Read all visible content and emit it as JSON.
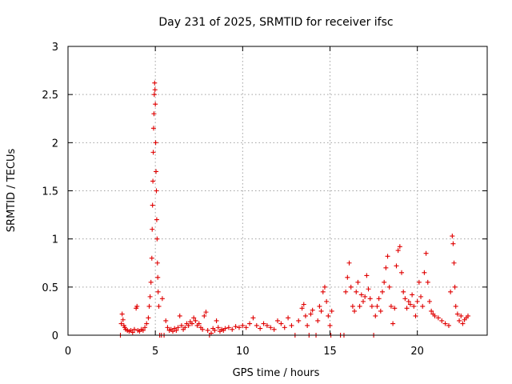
{
  "chart_data": {
    "type": "scatter",
    "title": "Day 231 of 2025, SRMTID for receiver ifsc",
    "xlabel": "GPS time / hours",
    "ylabel": "SRMTID / TECUs",
    "xlim": [
      0,
      24
    ],
    "ylim": [
      0,
      3
    ],
    "xticks": [
      0,
      5,
      10,
      15,
      20
    ],
    "yticks": [
      0,
      0.5,
      1,
      1.5,
      2,
      2.5,
      3
    ],
    "ytick_labels": [
      "0",
      "0.5",
      "1",
      "1.5",
      "2",
      "2.5",
      "3"
    ],
    "grid": true,
    "marker": "+",
    "color": "#e00000",
    "series": [
      {
        "name": "SRMTID",
        "points": [
          [
            3.0,
            0.0
          ],
          [
            3.05,
            0.12
          ],
          [
            3.1,
            0.22
          ],
          [
            3.15,
            0.16
          ],
          [
            3.2,
            0.1
          ],
          [
            3.25,
            0.08
          ],
          [
            3.3,
            0.06
          ],
          [
            3.4,
            0.05
          ],
          [
            3.5,
            0.04
          ],
          [
            3.6,
            0.05
          ],
          [
            3.7,
            0.03
          ],
          [
            3.8,
            0.06
          ],
          [
            3.9,
            0.28
          ],
          [
            3.95,
            0.3
          ],
          [
            4.0,
            0.05
          ],
          [
            4.1,
            0.04
          ],
          [
            4.2,
            0.06
          ],
          [
            4.3,
            0.05
          ],
          [
            4.4,
            0.08
          ],
          [
            4.5,
            0.12
          ],
          [
            4.6,
            0.18
          ],
          [
            4.65,
            0.3
          ],
          [
            4.7,
            0.4
          ],
          [
            4.75,
            0.55
          ],
          [
            4.8,
            0.8
          ],
          [
            4.82,
            1.1
          ],
          [
            4.84,
            1.35
          ],
          [
            4.86,
            1.6
          ],
          [
            4.88,
            1.9
          ],
          [
            4.9,
            2.15
          ],
          [
            4.92,
            2.3
          ],
          [
            4.94,
            2.5
          ],
          [
            4.96,
            2.62
          ],
          [
            4.98,
            2.55
          ],
          [
            5.0,
            2.4
          ],
          [
            5.02,
            2.0
          ],
          [
            5.04,
            1.7
          ],
          [
            5.06,
            1.5
          ],
          [
            5.08,
            1.2
          ],
          [
            5.1,
            1.0
          ],
          [
            5.12,
            0.75
          ],
          [
            5.14,
            0.6
          ],
          [
            5.16,
            0.45
          ],
          [
            5.2,
            0.3
          ],
          [
            5.25,
            0.0
          ],
          [
            5.35,
            0.0
          ],
          [
            5.4,
            0.38
          ],
          [
            5.5,
            0.0
          ],
          [
            5.6,
            0.15
          ],
          [
            5.7,
            0.08
          ],
          [
            5.8,
            0.05
          ],
          [
            5.9,
            0.06
          ],
          [
            6.0,
            0.04
          ],
          [
            6.1,
            0.07
          ],
          [
            6.2,
            0.05
          ],
          [
            6.3,
            0.08
          ],
          [
            6.4,
            0.2
          ],
          [
            6.5,
            0.1
          ],
          [
            6.6,
            0.06
          ],
          [
            6.7,
            0.08
          ],
          [
            6.8,
            0.12
          ],
          [
            6.9,
            0.1
          ],
          [
            7.0,
            0.14
          ],
          [
            7.1,
            0.12
          ],
          [
            7.2,
            0.18
          ],
          [
            7.3,
            0.15
          ],
          [
            7.4,
            0.1
          ],
          [
            7.5,
            0.12
          ],
          [
            7.6,
            0.08
          ],
          [
            7.7,
            0.06
          ],
          [
            7.8,
            0.2
          ],
          [
            7.9,
            0.24
          ],
          [
            8.0,
            0.05
          ],
          [
            8.1,
            0.0
          ],
          [
            8.2,
            0.02
          ],
          [
            8.3,
            0.07
          ],
          [
            8.4,
            0.05
          ],
          [
            8.5,
            0.15
          ],
          [
            8.6,
            0.08
          ],
          [
            8.7,
            0.04
          ],
          [
            8.8,
            0.06
          ],
          [
            8.9,
            0.05
          ],
          [
            9.0,
            0.07
          ],
          [
            9.2,
            0.08
          ],
          [
            9.4,
            0.06
          ],
          [
            9.6,
            0.09
          ],
          [
            9.8,
            0.08
          ],
          [
            10.0,
            0.1
          ],
          [
            10.2,
            0.08
          ],
          [
            10.4,
            0.12
          ],
          [
            10.6,
            0.18
          ],
          [
            10.8,
            0.1
          ],
          [
            11.0,
            0.07
          ],
          [
            11.2,
            0.12
          ],
          [
            11.4,
            0.1
          ],
          [
            11.6,
            0.08
          ],
          [
            11.8,
            0.06
          ],
          [
            12.0,
            0.15
          ],
          [
            12.2,
            0.12
          ],
          [
            12.4,
            0.08
          ],
          [
            12.6,
            0.18
          ],
          [
            12.8,
            0.1
          ],
          [
            13.0,
            0.0
          ],
          [
            13.2,
            0.15
          ],
          [
            13.4,
            0.28
          ],
          [
            13.5,
            0.32
          ],
          [
            13.6,
            0.2
          ],
          [
            13.7,
            0.1
          ],
          [
            13.8,
            0.0
          ],
          [
            13.9,
            0.22
          ],
          [
            14.0,
            0.26
          ],
          [
            14.2,
            0.0
          ],
          [
            14.3,
            0.15
          ],
          [
            14.4,
            0.3
          ],
          [
            14.5,
            0.25
          ],
          [
            14.6,
            0.45
          ],
          [
            14.7,
            0.5
          ],
          [
            14.8,
            0.35
          ],
          [
            14.9,
            0.2
          ],
          [
            15.0,
            0.1
          ],
          [
            15.05,
            0.0
          ],
          [
            15.1,
            0.25
          ],
          [
            15.6,
            0.0
          ],
          [
            15.8,
            0.0
          ],
          [
            15.9,
            0.45
          ],
          [
            16.0,
            0.6
          ],
          [
            16.1,
            0.75
          ],
          [
            16.2,
            0.5
          ],
          [
            16.3,
            0.3
          ],
          [
            16.4,
            0.25
          ],
          [
            16.5,
            0.45
          ],
          [
            16.6,
            0.55
          ],
          [
            16.7,
            0.3
          ],
          [
            16.8,
            0.42
          ],
          [
            16.9,
            0.35
          ],
          [
            17.0,
            0.4
          ],
          [
            17.1,
            0.62
          ],
          [
            17.2,
            0.48
          ],
          [
            17.3,
            0.38
          ],
          [
            17.4,
            0.3
          ],
          [
            17.5,
            0.0
          ],
          [
            17.6,
            0.2
          ],
          [
            17.7,
            0.3
          ],
          [
            17.8,
            0.38
          ],
          [
            17.9,
            0.25
          ],
          [
            18.0,
            0.45
          ],
          [
            18.1,
            0.55
          ],
          [
            18.2,
            0.7
          ],
          [
            18.3,
            0.82
          ],
          [
            18.4,
            0.5
          ],
          [
            18.5,
            0.3
          ],
          [
            18.6,
            0.12
          ],
          [
            18.7,
            0.28
          ],
          [
            18.8,
            0.72
          ],
          [
            18.9,
            0.88
          ],
          [
            19.0,
            0.92
          ],
          [
            19.1,
            0.65
          ],
          [
            19.2,
            0.45
          ],
          [
            19.3,
            0.38
          ],
          [
            19.4,
            0.28
          ],
          [
            19.5,
            0.35
          ],
          [
            19.6,
            0.32
          ],
          [
            19.7,
            0.42
          ],
          [
            19.8,
            0.3
          ],
          [
            19.9,
            0.2
          ],
          [
            20.0,
            0.35
          ],
          [
            20.1,
            0.55
          ],
          [
            20.2,
            0.4
          ],
          [
            20.3,
            0.3
          ],
          [
            20.4,
            0.65
          ],
          [
            20.5,
            0.85
          ],
          [
            20.6,
            0.55
          ],
          [
            20.7,
            0.35
          ],
          [
            20.8,
            0.25
          ],
          [
            20.9,
            0.22
          ],
          [
            21.0,
            0.2
          ],
          [
            21.2,
            0.18
          ],
          [
            21.4,
            0.15
          ],
          [
            21.6,
            0.12
          ],
          [
            21.8,
            0.1
          ],
          [
            21.9,
            0.45
          ],
          [
            22.0,
            1.03
          ],
          [
            22.05,
            0.95
          ],
          [
            22.1,
            0.75
          ],
          [
            22.15,
            0.5
          ],
          [
            22.2,
            0.3
          ],
          [
            22.3,
            0.22
          ],
          [
            22.4,
            0.15
          ],
          [
            22.5,
            0.2
          ],
          [
            22.6,
            0.12
          ],
          [
            22.7,
            0.16
          ],
          [
            22.8,
            0.18
          ],
          [
            22.9,
            0.2
          ]
        ]
      }
    ]
  }
}
